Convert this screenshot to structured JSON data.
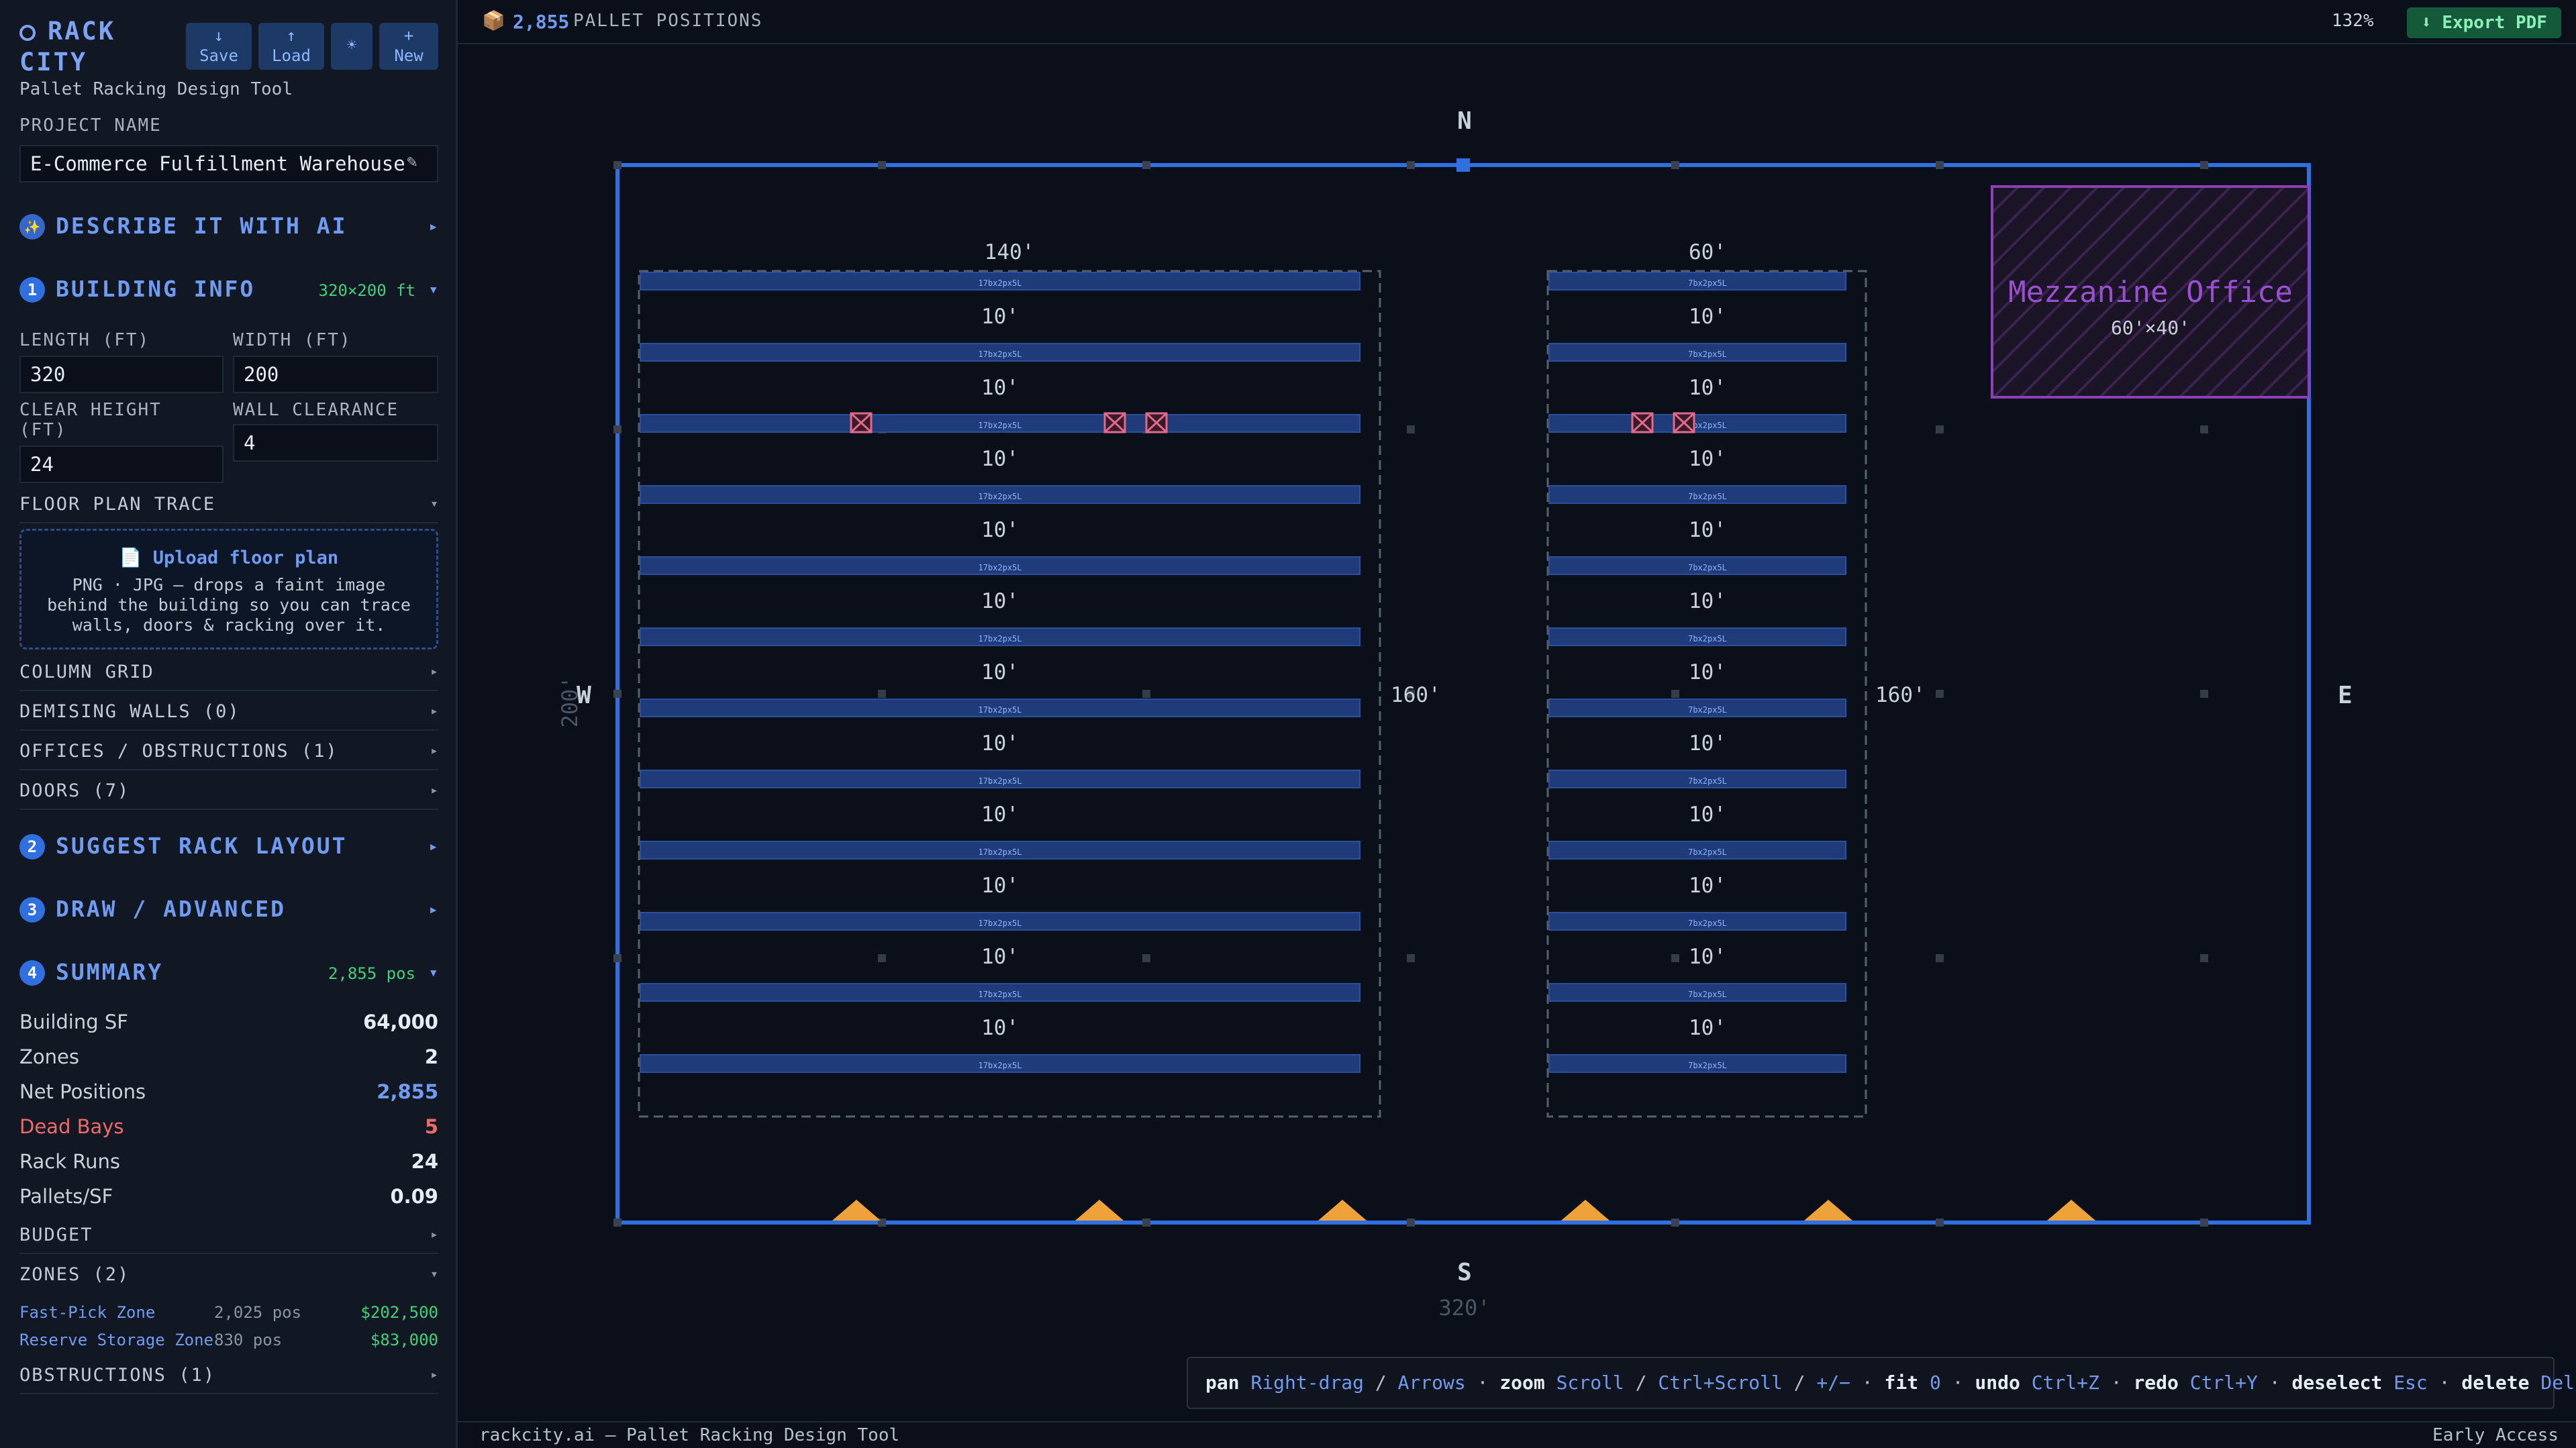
{
  "app": {
    "name_line1": "RACK",
    "name_line2": "CITY",
    "tagline": "Pallet Racking Design Tool",
    "buttons": [
      {
        "icon": "↓",
        "label": "Save"
      },
      {
        "icon": "↑",
        "label": "Load"
      },
      {
        "icon": "☀",
        "label": ""
      },
      {
        "icon": "+",
        "label": "New"
      }
    ]
  },
  "project": {
    "label": "PROJECT NAME",
    "value": "E-Commerce Fulfillment Warehouse",
    "edit_icon": "✎"
  },
  "sections": {
    "ai": {
      "icon": "✨",
      "title": "DESCRIBE IT WITH AI",
      "arrow": "▸"
    },
    "building": {
      "num": "1",
      "title": "BUILDING INFO",
      "badge": "320×200 ft",
      "arrow": "▾"
    },
    "suggest": {
      "num": "2",
      "title": "SUGGEST RACK LAYOUT",
      "arrow": "▸"
    },
    "draw": {
      "num": "3",
      "title": "DRAW / ADVANCED",
      "arrow": "▸"
    },
    "summary": {
      "num": "4",
      "title": "SUMMARY",
      "badge": "2,855 pos",
      "arrow": "▾"
    }
  },
  "building_fields": {
    "length_label": "LENGTH (FT)",
    "length": "320",
    "width_label": "WIDTH (FT)",
    "width": "200",
    "height_label_1": "CLEAR HEIGHT",
    "height_label_2": "(FT)",
    "height": "24",
    "clearance_label": "WALL CLEARANCE",
    "clearance": "4"
  },
  "floor_plan": {
    "title": "FLOOR PLAN TRACE",
    "arrow": "▾",
    "upload_icon": "📄",
    "upload_title": "Upload floor plan",
    "upload_desc": "PNG · JPG — drops a faint image behind the building so you can trace walls, doors & racking over it."
  },
  "subsections": [
    {
      "title": "COLUMN GRID",
      "arrow": "▸"
    },
    {
      "title": "DEMISING WALLS (0)",
      "arrow": "▸"
    },
    {
      "title": "OFFICES / OBSTRUCTIONS (1)",
      "arrow": "▸"
    },
    {
      "title": "DOORS (7)",
      "arrow": "▸"
    }
  ],
  "summary": [
    {
      "label": "Building SF",
      "value": "64,000",
      "color": "#e6edf3"
    },
    {
      "label": "Zones",
      "value": "2",
      "color": "#e6edf3"
    },
    {
      "label": "Net Positions",
      "value": "2,855",
      "color": "#6f9cf2"
    },
    {
      "label": "Dead Bays",
      "value": "5",
      "color": "#f06a6a"
    },
    {
      "label": "Rack Runs",
      "value": "24",
      "color": "#e6edf3"
    },
    {
      "label": "Pallets/SF",
      "value": "0.09",
      "color": "#e6edf3"
    }
  ],
  "budget": {
    "title": "BUDGET",
    "arrow": "▸"
  },
  "zones_header": {
    "title": "ZONES (2)",
    "arrow": "▾"
  },
  "zones": [
    {
      "name": "Fast-Pick Zone",
      "positions": "2,025 pos",
      "cost": "$202,500"
    },
    {
      "name": "Reserve Storage Zone",
      "positions": "830 pos",
      "cost": "$83,000"
    }
  ],
  "obstructions": {
    "title": "OBSTRUCTIONS (1)",
    "arrow": "▸"
  },
  "topbar": {
    "icon": "📦",
    "count": "2,855",
    "count_label": "PALLET POSITIONS",
    "zoom": "132%",
    "export_icon": "⬇",
    "export_label": "Export PDF"
  },
  "canvas": {
    "compass": {
      "n": "N",
      "s": "S",
      "e": "E",
      "w": "W"
    },
    "dim_bottom": "320'",
    "dim_left": "200'",
    "zone1": {
      "width_label": "140'",
      "depth_label": "160'"
    },
    "zone2": {
      "width_label": "60'",
      "depth_label": "160'"
    },
    "aisle_label": "10'",
    "zone1_rack_label": "17bx2px5L",
    "zone2_rack_label": "7bx2px5L",
    "office": {
      "name": "Mezzanine Office",
      "size": "60'×40'"
    },
    "colors": {
      "wall": "#2f6fe0",
      "rack": "#1f3b7a",
      "office": "#8f3fb5",
      "door": "#f0a23a",
      "dead": "#e06a8a"
    }
  },
  "help": [
    {
      "action": "pan",
      "keys": [
        "Right-drag",
        "Arrows"
      ]
    },
    {
      "action": "zoom",
      "keys": [
        "Scroll",
        "Ctrl+Scroll",
        "+/−"
      ]
    },
    {
      "action": "fit",
      "keys": [
        "0"
      ]
    },
    {
      "action": "undo",
      "keys": [
        "Ctrl+Z"
      ]
    },
    {
      "action": "redo",
      "keys": [
        "Ctrl+Y"
      ]
    },
    {
      "action": "deselect",
      "keys": [
        "Esc"
      ]
    },
    {
      "action": "delete",
      "keys": [
        "Del"
      ]
    }
  ],
  "status": {
    "left": "rackcity.ai — Pallet Racking Design Tool",
    "right": "Early Access"
  }
}
